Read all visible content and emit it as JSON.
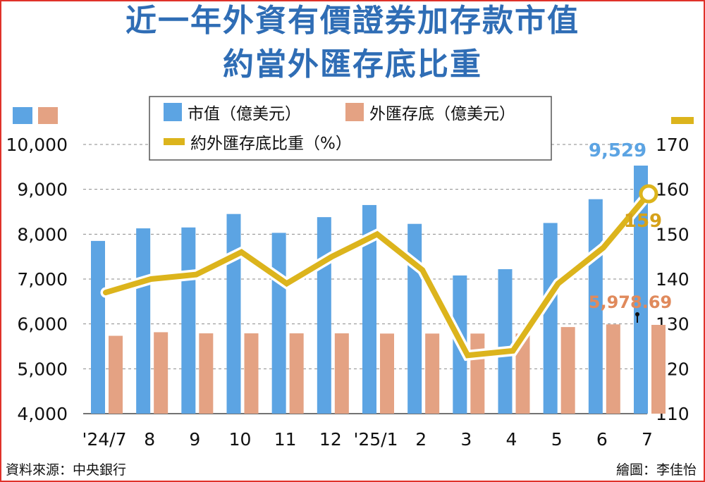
{
  "title_line1": "近一年外資有價證券加存款市值",
  "title_line2": "約當外匯存底比重",
  "source": "資料來源：中央銀行",
  "credit": "繪圖：李佳怡",
  "colors": {
    "market_value": "#5ca4e3",
    "fx_reserves": "#e4a283",
    "ratio": "#dcb41c",
    "title": "#2f6db5",
    "border": "#e0322a"
  },
  "chart_data": {
    "type": "bar",
    "categories": [
      "'24/7",
      "8",
      "9",
      "10",
      "11",
      "12",
      "'25/1",
      "2",
      "3",
      "4",
      "5",
      "6",
      "7"
    ],
    "series": [
      {
        "name": "市值（億美元）",
        "type": "bar",
        "axis": "left",
        "values": [
          7850,
          8130,
          8150,
          8450,
          8030,
          8380,
          8650,
          8230,
          7080,
          7220,
          8250,
          8780,
          9529
        ]
      },
      {
        "name": "外匯存底（億美元）",
        "type": "bar",
        "axis": "left",
        "values": [
          5735,
          5815,
          5790,
          5790,
          5790,
          5790,
          5785,
          5785,
          5785,
          5785,
          5930,
          5990,
          5978.69
        ]
      },
      {
        "name": "約外匯存底比重（%）",
        "type": "line",
        "axis": "right",
        "values": [
          137,
          140,
          141,
          146,
          139,
          145,
          150,
          142,
          123,
          124,
          139,
          147,
          159
        ]
      }
    ],
    "left_axis": {
      "min": 4000,
      "max": 10000,
      "ticks": [
        "4,000",
        "5,000",
        "6,000",
        "7,000",
        "8,000",
        "9,000",
        "10,000"
      ]
    },
    "right_axis": {
      "min": 110,
      "max": 170,
      "ticks": [
        "110",
        "120",
        "130",
        "140",
        "150",
        "160",
        "170"
      ]
    },
    "annotations": [
      {
        "text": "9,529",
        "series": 0,
        "index": 12
      },
      {
        "text": "159",
        "series": 2,
        "index": 12
      },
      {
        "text": "5,978.69",
        "series": 1,
        "index": 12
      }
    ],
    "legend": {
      "position": "top-center",
      "labels": [
        "市值（億美元）",
        "外匯存底（億美元）",
        "約外匯存底比重（%）"
      ]
    },
    "grid": true
  }
}
